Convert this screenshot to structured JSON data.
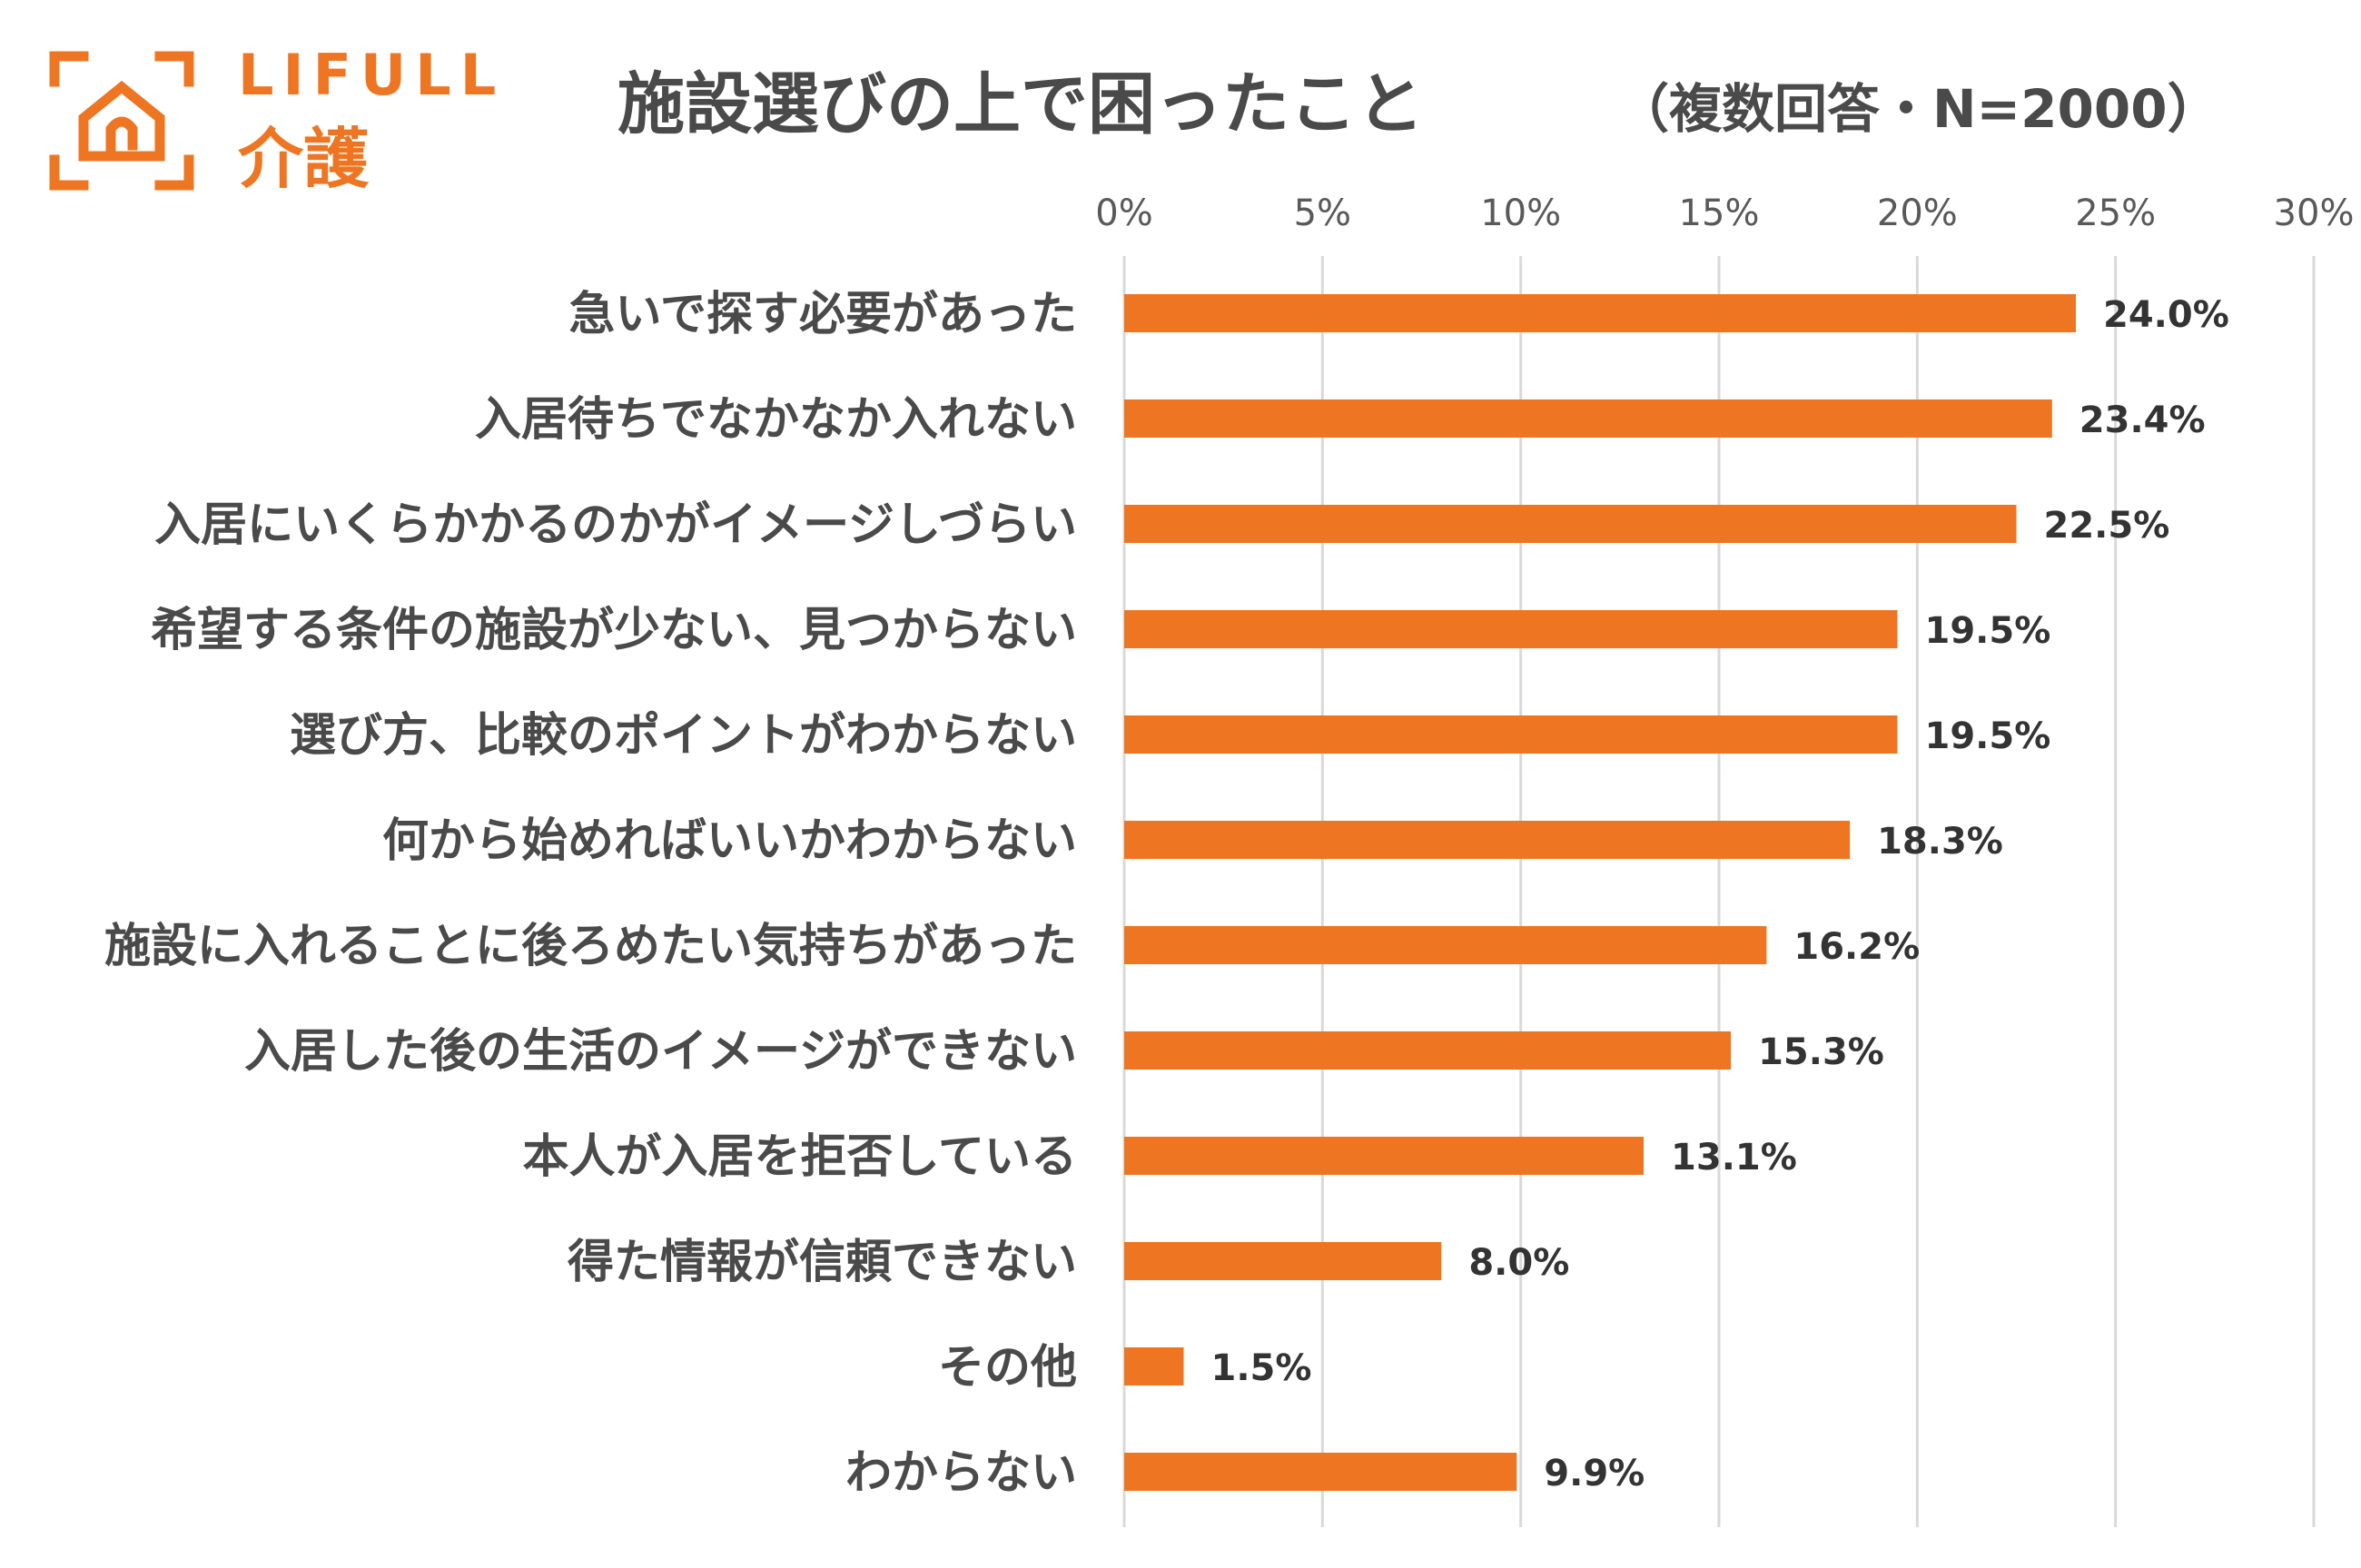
{
  "logo": {
    "brand_text": "LIFULL",
    "sub_text": "介護",
    "icon": "house-frame-icon",
    "color": "#EE7622"
  },
  "colors": {
    "bar": "#EE7622",
    "grid": "#D9D9D9",
    "text": "#4a4a4a"
  },
  "chart_data": {
    "type": "bar",
    "orientation": "horizontal",
    "title": "施設選びの上で困ったこと",
    "subtitle": "（複数回答・N=2000）",
    "xlabel": "",
    "ylabel": "",
    "xlim": [
      0,
      30
    ],
    "ticks": [
      0,
      5,
      10,
      15,
      20,
      25,
      30
    ],
    "tick_suffix": "%",
    "grid": true,
    "categories": [
      "急いで探す必要があった",
      "入居待ちでなかなか入れない",
      "入居にいくらかかるのかがイメージしづらい",
      "希望する条件の施設が少ない、見つからない",
      "選び方、比較のポイントがわからない",
      "何から始めればいいかわからない",
      "施設に入れることに後ろめたい気持ちがあった",
      "入居した後の生活のイメージができない",
      "本人が入居を拒否している",
      "得た情報が信頼できない",
      "その他",
      "わからない"
    ],
    "values": [
      24.0,
      23.4,
      22.5,
      19.5,
      19.5,
      18.3,
      16.2,
      15.3,
      13.1,
      8.0,
      1.5,
      9.9
    ],
    "labels": [
      "24.0%",
      "23.4%",
      "22.5%",
      "19.5%",
      "19.5%",
      "18.3%",
      "16.2%",
      "15.3%",
      "13.1%",
      "8.0%",
      "1.5%",
      "9.9%"
    ]
  }
}
